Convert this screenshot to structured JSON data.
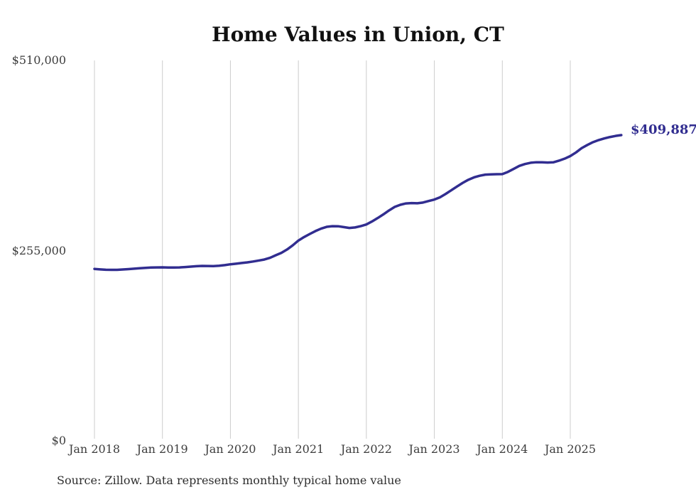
{
  "chart_data": {
    "type": "line",
    "title": "Home Values in Union, CT",
    "source": "Source: Zillow. Data represents monthly typical home value",
    "end_annotation": "$409,887",
    "latest_value": 409887,
    "series_name": "Monthly typical home value",
    "unit": "USD",
    "start_month": "2018-01",
    "end_month": "2025-10",
    "frequency": "monthly",
    "ylim": [
      0,
      510000
    ],
    "grid": "vertical-only",
    "legend": "none",
    "line_color": "#312d90",
    "grid_color": "#cccccc",
    "y_ticks": [
      {
        "label": "$510,000",
        "value": 510000
      },
      {
        "label": "$255,000",
        "value": 255000
      },
      {
        "label": "$0",
        "value": 0
      }
    ],
    "x_ticks": [
      "Jan 2018",
      "Jan 2019",
      "Jan 2020",
      "Jan 2021",
      "Jan 2022",
      "Jan 2023",
      "Jan 2024",
      "Jan 2025"
    ],
    "values": [
      230500,
      229900,
      229400,
      229200,
      229300,
      229700,
      230200,
      230800,
      231400,
      231900,
      232300,
      232500,
      232600,
      232400,
      232300,
      232500,
      233000,
      233600,
      234200,
      234500,
      234400,
      234300,
      234700,
      235600,
      236700,
      237500,
      238400,
      239300,
      240400,
      241700,
      243100,
      245400,
      248800,
      252000,
      256500,
      262100,
      268500,
      273200,
      277300,
      281200,
      284500,
      286900,
      287800,
      287700,
      286600,
      285400,
      286100,
      287800,
      290100,
      294100,
      298700,
      303600,
      308900,
      313600,
      316500,
      318300,
      318800,
      318500,
      319500,
      321500,
      323500,
      326500,
      331000,
      336000,
      341000,
      345800,
      350000,
      353200,
      355400,
      356900,
      357300,
      357500,
      357600,
      360600,
      364600,
      368600,
      371100,
      372800,
      373500,
      373500,
      373100,
      373400,
      375600,
      378300,
      381800,
      386600,
      392400,
      396600,
      400400,
      403200,
      405400,
      407300,
      408800,
      409887
    ]
  }
}
